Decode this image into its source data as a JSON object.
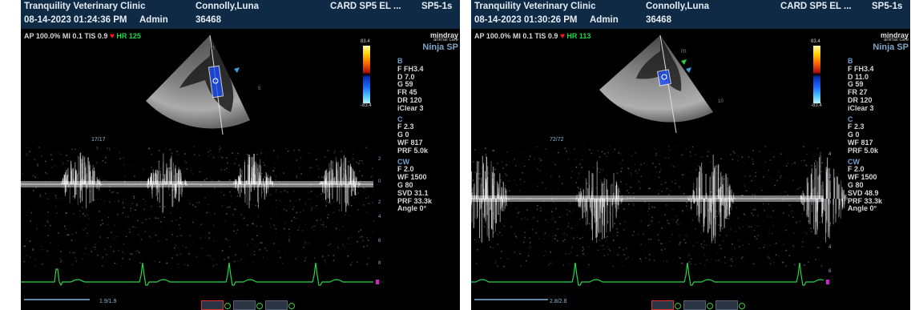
{
  "panels": [
    {
      "clinic": "Tranquility Veterinary Clinic",
      "datetime": "08-14-2023 01:24:36 PM",
      "operator": "Admin",
      "patient": "Connolly,Luna",
      "patient_id": "36468",
      "exam": "CARD SP5 EL ...",
      "probe": "SP5-1s",
      "status": {
        "ap": "AP 100.0%",
        "mi": "MI 0.1",
        "tis": "TIS 0.9",
        "hr": "HR 125"
      },
      "brand": {
        "logo": "mindray",
        "sub": "animal care",
        "model": "Ninja SP"
      },
      "colorbar": {
        "top": "83.4",
        "bottom": "-83.4"
      },
      "params": [
        {
          "t": "B",
          "sec": true
        },
        {
          "t": "F FH3.4"
        },
        {
          "t": "D 7.0"
        },
        {
          "t": "G 59"
        },
        {
          "t": "FR 45"
        },
        {
          "t": "DR 120"
        },
        {
          "t": "iClear 3"
        },
        {
          "t": "",
          "sp": true
        },
        {
          "t": "C",
          "sec": true
        },
        {
          "t": "F 2.3"
        },
        {
          "t": "G 0"
        },
        {
          "t": "WF 817"
        },
        {
          "t": "PRF 5.0k"
        },
        {
          "t": "",
          "sp": true
        },
        {
          "t": "CW",
          "sec": true
        },
        {
          "t": "F 2.0"
        },
        {
          "t": "WF 1500"
        },
        {
          "t": "G 80"
        },
        {
          "t": "SVD 31.1"
        },
        {
          "t": "PRF 33.3k"
        },
        {
          "t": "Angle 0°"
        }
      ],
      "sweep_label": "17/17",
      "frame_label": "1.9/1.9",
      "scale_label": "",
      "depth_tick": "5"
    },
    {
      "clinic": "Tranquility Veterinary Clinic",
      "datetime": "08-14-2023 01:30:26 PM",
      "operator": "Admin",
      "patient": "Connolly,Luna",
      "patient_id": "36468",
      "exam": "CARD SP5 EL ...",
      "probe": "SP5-1s",
      "status": {
        "ap": "AP 100.0%",
        "mi": "MI 0.1",
        "tis": "TIS 0.9",
        "hr": "HR 113"
      },
      "brand": {
        "logo": "mindray",
        "sub": "animal care",
        "model": "Ninja SP"
      },
      "colorbar": {
        "top": "83.4",
        "bottom": "-83.4"
      },
      "params": [
        {
          "t": "B",
          "sec": true
        },
        {
          "t": "F FH3.4"
        },
        {
          "t": "D 11.0"
        },
        {
          "t": "G 59"
        },
        {
          "t": "FR 27"
        },
        {
          "t": "DR 120"
        },
        {
          "t": "iClear 3"
        },
        {
          "t": "",
          "sp": true
        },
        {
          "t": "C",
          "sec": true
        },
        {
          "t": "F 2.3"
        },
        {
          "t": "G 0"
        },
        {
          "t": "WF 817"
        },
        {
          "t": "PRF 5.0k"
        },
        {
          "t": "",
          "sp": true
        },
        {
          "t": "CW",
          "sec": true
        },
        {
          "t": "F 2.0"
        },
        {
          "t": "WF 1500"
        },
        {
          "t": "G 80"
        },
        {
          "t": "SVD 48.9"
        },
        {
          "t": "PRF 33.3k"
        },
        {
          "t": "Angle 0°"
        }
      ],
      "sweep_label": "72/72",
      "frame_label": "2.8/2.8",
      "scale_label": "m/s",
      "depth_tick": "10"
    }
  ],
  "colors": {
    "header_bg": "#0e2a45",
    "param_text": "#d6d6d6",
    "section_text": "#6fa0cf",
    "ecg": "#2bd34a",
    "hr_text": "#1fd64a",
    "heart": "#ff1a1a",
    "color_box": "#1a4fff"
  },
  "icons": [
    "heart-icon",
    "mindray-logo",
    "probe-orientation-marker",
    "color-box-roi",
    "sample-gate-icon",
    "cine-thumbnail-icon"
  ]
}
